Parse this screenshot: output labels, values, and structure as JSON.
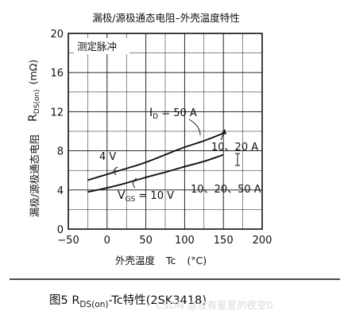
{
  "chart_data": {
    "type": "line",
    "title": "漏极/源极通态电阻–外壳温度特性",
    "xlabel": {
      "main": "外壳温度",
      "symbol": "Tc",
      "unit": "(°C)"
    },
    "ylabel": {
      "main": "漏极/源极通态电阻",
      "symbol": "R",
      "sub": "DS(on)",
      "unit": "(mΩ)"
    },
    "xlim": [
      -50,
      200
    ],
    "ylim": [
      0,
      20
    ],
    "xticks": [
      -50,
      0,
      50,
      100,
      150,
      200
    ],
    "yticks": [
      0,
      4,
      8,
      12,
      16,
      20
    ],
    "xtick_labels": [
      "−50",
      "0",
      "50",
      "100",
      "150",
      "200"
    ],
    "grid": true,
    "corner_note": "测定脉冲",
    "series": [
      {
        "id": "id50",
        "x": [
          -25,
          0,
          25,
          50,
          75,
          100,
          125,
          150
        ],
        "y": [
          5.0,
          5.6,
          6.2,
          6.8,
          7.6,
          8.4,
          9.0,
          9.8
        ]
      },
      {
        "id": "id10",
        "x": [
          -25,
          0,
          25,
          50,
          75,
          100,
          125,
          150
        ],
        "y": [
          3.8,
          4.2,
          4.7,
          5.3,
          5.8,
          6.4,
          6.9,
          7.6
        ]
      }
    ],
    "annotations": {
      "id_label": {
        "main": "I",
        "sub": "D",
        "rest": " = 50 A"
      },
      "id_a": "10、20 A",
      "vgs4": "4 V",
      "vgs10": {
        "main": "V",
        "sub": "GS",
        "rest": " = 10 V"
      },
      "id_b": "10、20、50 A"
    },
    "caption": {
      "prefix": "图5 R",
      "sub": "DS(on)",
      "suffix": "-Tc特性(2SK3418)"
    }
  },
  "watermark": "CSDN @没有星星的夜空0"
}
